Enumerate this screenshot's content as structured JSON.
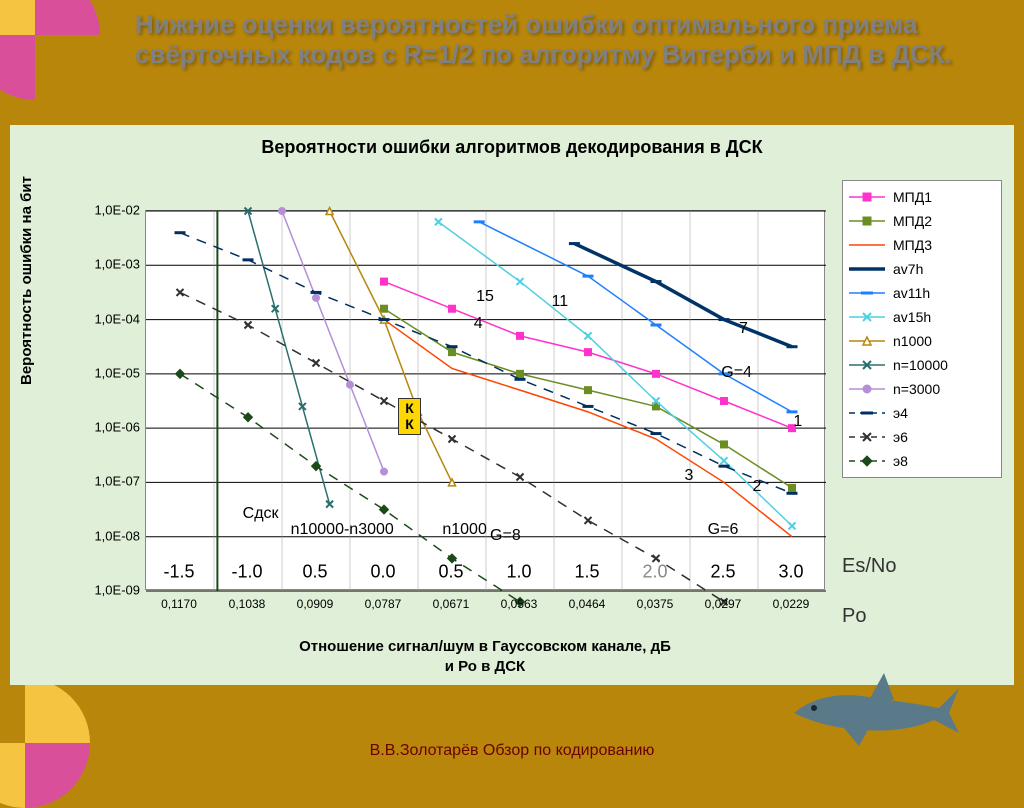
{
  "slide_title": "Нижние оценки вероятностей ошибки оптимального приема свёрточных  кодов с R=1/2   по алгоритму Витерби и МПД  в ДСК.",
  "chart_title": "Вероятности ошибки  алгоритмов декодирования в ДСК",
  "y_axis_label": "Вероятность ошибки на бит",
  "x_axis_label1": "Отношение сигнал/шум в Гауссовском  канале, дБ",
  "x_axis_label2": "и Ро в ДСК",
  "side_labels": {
    "esno": "Es/No",
    "po": "Po"
  },
  "footer_text": "В.В.Золотарёв       Обзор  по  кодированию",
  "colors": {
    "slide_bg": "#b8860b",
    "panel_bg": "#e0f0d8",
    "plot_bg": "#ffffff",
    "grid": "#000000",
    "title_text": "#808080",
    "footer_text": "#6a0000",
    "decor1": "#d94f9a",
    "decor2": "#f5c542"
  },
  "y_axis": {
    "scale": "log",
    "min_exp": -9,
    "max_exp": -2,
    "ticks": [
      "1,0E-02",
      "1,0E-03",
      "1,0E-04",
      "1,0E-05",
      "1,0E-06",
      "1,0E-07",
      "1,0E-08",
      "1,0E-09"
    ]
  },
  "x_axis": {
    "categories": [
      "0,1170",
      "0,1038",
      "0,0909",
      "0,0787",
      "0,0671",
      "0,0563",
      "0,0464",
      "0,0375",
      "0,0297",
      "0,0229"
    ],
    "db_labels": [
      "-1.5",
      "-1.0",
      "0.5",
      "0.0",
      "0.5",
      "1.0",
      "1.5",
      "2.0",
      "2.5",
      "3.0"
    ],
    "db_gray_index": 7
  },
  "legend": [
    {
      "key": "mpd1",
      "label": "МПД1",
      "type": "line-marker",
      "color": "#ff33cc",
      "marker": "square-fill"
    },
    {
      "key": "mpd2",
      "label": "МПД2",
      "type": "line-marker",
      "color": "#6b8e23",
      "marker": "square-fill"
    },
    {
      "key": "mpd3",
      "label": "МПД3",
      "type": "line",
      "color": "#ff4500",
      "marker": "none"
    },
    {
      "key": "av7h",
      "label": "av7h",
      "type": "thick-line",
      "color": "#003366",
      "marker": "dash"
    },
    {
      "key": "av11h",
      "label": "av11h",
      "type": "line-marker",
      "color": "#1e7fff",
      "marker": "dash"
    },
    {
      "key": "av15h",
      "label": "av15h",
      "type": "line-marker",
      "color": "#4fd0e0",
      "marker": "x"
    },
    {
      "key": "n1000",
      "label": "n1000",
      "type": "line-marker",
      "color": "#b8860b",
      "marker": "triangle"
    },
    {
      "key": "n10000",
      "label": "n=10000",
      "type": "line-marker",
      "color": "#2a6f6f",
      "marker": "x"
    },
    {
      "key": "n3000",
      "label": "n=3000",
      "type": "line-marker",
      "color": "#b58ed6",
      "marker": "circle"
    },
    {
      "key": "e4",
      "label": "э4",
      "type": "dash-marker",
      "color": "#003060",
      "marker": "dash"
    },
    {
      "key": "e6",
      "label": "э6",
      "type": "dash-marker",
      "color": "#303030",
      "marker": "x"
    },
    {
      "key": "e8",
      "label": "э8",
      "type": "dash-marker",
      "color": "#1a4a1a",
      "marker": "diamond"
    }
  ],
  "series": {
    "mpd1": [
      [
        3,
        -3.3
      ],
      [
        4,
        -3.8
      ],
      [
        5,
        -4.3
      ],
      [
        6,
        -4.6
      ],
      [
        7,
        -5.0
      ],
      [
        8,
        -5.5
      ],
      [
        9,
        -6.0
      ]
    ],
    "mpd2": [
      [
        3,
        -3.8
      ],
      [
        4,
        -4.6
      ],
      [
        5,
        -5.0
      ],
      [
        6,
        -5.3
      ],
      [
        7,
        -5.6
      ],
      [
        8,
        -6.3
      ],
      [
        9,
        -7.1
      ]
    ],
    "mpd3": [
      [
        3,
        -4.0
      ],
      [
        4,
        -4.9
      ],
      [
        5,
        -5.3
      ],
      [
        6,
        -5.7
      ],
      [
        7,
        -6.2
      ],
      [
        8,
        -7.0
      ],
      [
        9,
        -8.0
      ]
    ],
    "av7h": [
      [
        5.8,
        -2.6
      ],
      [
        7,
        -3.3
      ],
      [
        8,
        -4.0
      ],
      [
        9,
        -4.5
      ]
    ],
    "av11h": [
      [
        4.4,
        -2.2
      ],
      [
        6,
        -3.2
      ],
      [
        7,
        -4.1
      ],
      [
        8,
        -5.0
      ],
      [
        9,
        -5.7
      ]
    ],
    "av15h": [
      [
        3.8,
        -2.2
      ],
      [
        5,
        -3.3
      ],
      [
        6,
        -4.3
      ],
      [
        7,
        -5.5
      ],
      [
        8,
        -6.6
      ],
      [
        9,
        -7.8
      ]
    ],
    "n1000": [
      [
        2.2,
        -2.0
      ],
      [
        3,
        -4.0
      ],
      [
        3.5,
        -5.7
      ],
      [
        4,
        -7.0
      ]
    ],
    "n3000": [
      [
        1.5,
        -2.0
      ],
      [
        2,
        -3.6
      ],
      [
        2.5,
        -5.2
      ],
      [
        3,
        -6.8
      ]
    ],
    "n10000": [
      [
        1.0,
        -2.0
      ],
      [
        1.4,
        -3.8
      ],
      [
        1.8,
        -5.6
      ],
      [
        2.2,
        -7.4
      ]
    ],
    "e4": [
      [
        0,
        -2.4
      ],
      [
        1,
        -2.9
      ],
      [
        2,
        -3.5
      ],
      [
        3,
        -4.0
      ],
      [
        4,
        -4.5
      ],
      [
        5,
        -5.1
      ],
      [
        6,
        -5.6
      ],
      [
        7,
        -6.1
      ],
      [
        8,
        -6.7
      ],
      [
        9,
        -7.2
      ]
    ],
    "e6": [
      [
        0,
        -3.5
      ],
      [
        1,
        -4.1
      ],
      [
        2,
        -4.8
      ],
      [
        3,
        -5.5
      ],
      [
        4,
        -6.2
      ],
      [
        5,
        -6.9
      ],
      [
        6,
        -7.7
      ],
      [
        7,
        -8.4
      ],
      [
        8,
        -9.2
      ]
    ],
    "e8": [
      [
        0,
        -5.0
      ],
      [
        1,
        -5.8
      ],
      [
        2,
        -6.7
      ],
      [
        3,
        -7.5
      ],
      [
        4,
        -8.4
      ],
      [
        5,
        -9.2
      ]
    ]
  },
  "annotations": [
    {
      "text": "15",
      "xi": 4.5,
      "ye": -3.6
    },
    {
      "text": "4",
      "xi": 4.4,
      "ye": -4.1
    },
    {
      "text": "11",
      "xi": 5.6,
      "ye": -3.7
    },
    {
      "text": "7",
      "xi": 8.3,
      "ye": -4.2
    },
    {
      "text": "G=4",
      "xi": 8.2,
      "ye": -5.0
    },
    {
      "text": "1",
      "xi": 9.1,
      "ye": -5.9
    },
    {
      "text": "2",
      "xi": 8.5,
      "ye": -7.1
    },
    {
      "text": "3",
      "xi": 7.5,
      "ye": -6.9
    },
    {
      "text": "G=6",
      "xi": 8.0,
      "ye": -7.9
    },
    {
      "text": "G=8",
      "xi": 4.8,
      "ye": -8.0
    },
    {
      "text": "n1000",
      "xi": 4.2,
      "ye": -7.9
    },
    {
      "text": "n10000-n3000",
      "xi": 2.4,
      "ye": -7.9
    },
    {
      "text": "Сдск",
      "xi": 1.2,
      "ye": -7.6
    }
  ],
  "kk_box": {
    "text": "К\nК",
    "xi": 3.4,
    "ye": -5.8
  },
  "sdsk_line_x": 0.55,
  "plot_style": {
    "line_width": 1.5,
    "thick_line_width": 3.5,
    "dash_pattern": "10,8",
    "marker_size": 7,
    "font_title": 18,
    "font_axis": 15,
    "font_tick": 13,
    "font_legend": 14,
    "font_annot": 16
  }
}
